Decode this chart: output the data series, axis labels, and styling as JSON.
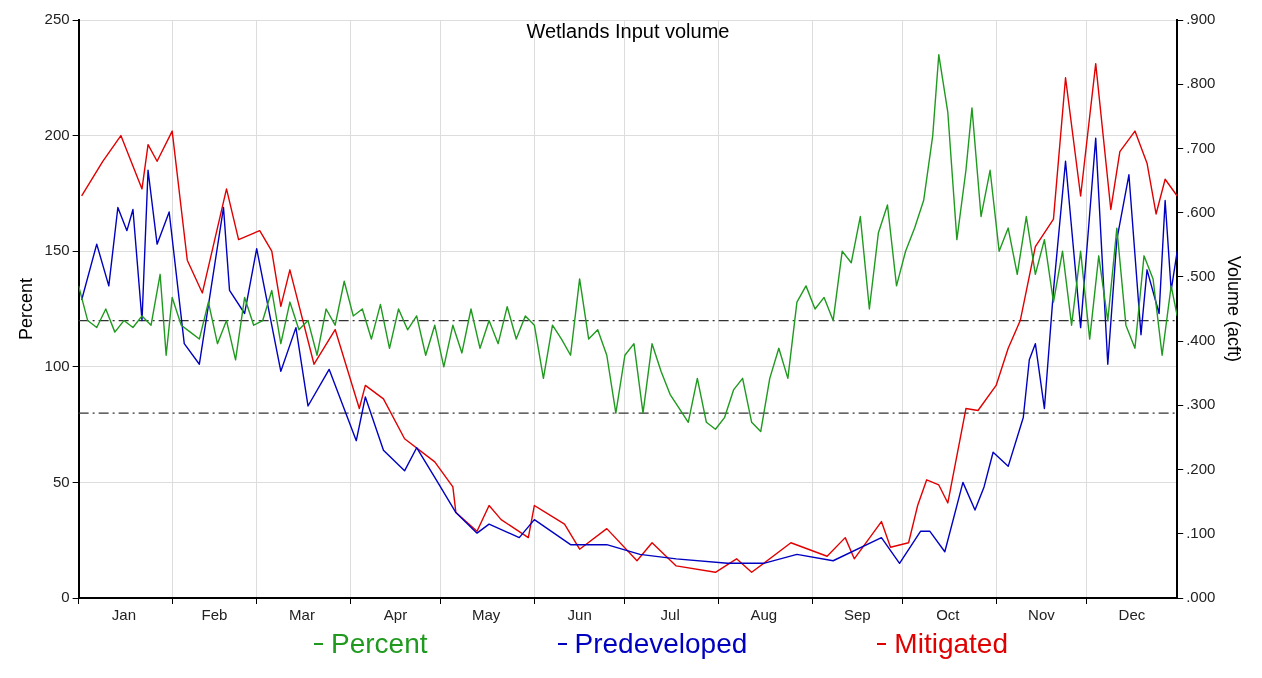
{
  "chart_data": {
    "type": "line",
    "title": "Wetlands Input volume",
    "ylabel": "Percent",
    "y2label": "Volume (acft)",
    "xlim": [
      "--01-01",
      "--12-31"
    ],
    "xticks": [
      {
        "value": "--01-01",
        "label": null
      },
      {
        "value": "--01-16",
        "label": "Jan"
      },
      {
        "value": "--02-01",
        "label": null
      },
      {
        "value": "--02-15",
        "label": "Feb"
      },
      {
        "value": "--03-01",
        "label": null
      },
      {
        "value": "--03-16",
        "label": "Mar"
      },
      {
        "value": "--04-01",
        "label": null
      },
      {
        "value": "--04-16",
        "label": "Apr"
      },
      {
        "value": "--05-01",
        "label": null
      },
      {
        "value": "--05-16",
        "label": "May"
      },
      {
        "value": "--06-01",
        "label": null
      },
      {
        "value": "--06-16",
        "label": "Jun"
      },
      {
        "value": "--07-01",
        "label": null
      },
      {
        "value": "--07-16",
        "label": "Jul"
      },
      {
        "value": "--08-01",
        "label": null
      },
      {
        "value": "--08-16",
        "label": "Aug"
      },
      {
        "value": "--09-01",
        "label": null
      },
      {
        "value": "--09-16",
        "label": "Sep"
      },
      {
        "value": "--10-01",
        "label": null
      },
      {
        "value": "--10-16",
        "label": "Oct"
      },
      {
        "value": "--11-01",
        "label": null
      },
      {
        "value": "--11-16",
        "label": "Nov"
      },
      {
        "value": "--12-01",
        "label": null
      },
      {
        "value": "--12-16",
        "label": "Dec"
      }
    ],
    "ylim": [
      0,
      250
    ],
    "yticks": [
      0,
      50,
      100,
      150,
      200,
      250
    ],
    "y2lim": [
      0,
      0.9
    ],
    "y2ticks": [
      {
        "value": 0,
        "label": ".000"
      },
      {
        "value": 0.1,
        "label": ".100"
      },
      {
        "value": 0.2,
        "label": ".200"
      },
      {
        "value": 0.3,
        "label": ".300"
      },
      {
        "value": 0.4,
        "label": ".400"
      },
      {
        "value": 0.5,
        "label": ".500"
      },
      {
        "value": 0.6,
        "label": ".600"
      },
      {
        "value": 0.7,
        "label": ".700"
      },
      {
        "value": 0.8,
        "label": ".800"
      },
      {
        "value": 0.9,
        "label": ".900"
      }
    ],
    "grid": true,
    "legend": "bottom",
    "ref_lines": [
      {
        "axis": "y",
        "value": 120,
        "line_style": "dashed",
        "color": "#333333"
      },
      {
        "axis": "y",
        "value": 80,
        "line_style": "dashed",
        "color": "#333333"
      }
    ],
    "series": [
      {
        "name": "Percent",
        "color": "#1f9a1f",
        "axis": "y",
        "x": [
          "--01-01",
          "--01-04",
          "--01-07",
          "--01-10",
          "--01-13",
          "--01-16",
          "--01-19",
          "--01-22",
          "--01-25",
          "--01-28",
          "--01-30",
          "--02-01",
          "--02-04",
          "--02-07",
          "--02-10",
          "--02-13",
          "--02-16",
          "--02-19",
          "--02-22",
          "--02-25",
          "--02-28",
          "--03-03",
          "--03-06",
          "--03-09",
          "--03-12",
          "--03-15",
          "--03-18",
          "--03-21",
          "--03-24",
          "--03-27",
          "--03-30",
          "--04-02",
          "--04-05",
          "--04-08",
          "--04-11",
          "--04-14",
          "--04-17",
          "--04-20",
          "--04-23",
          "--04-26",
          "--04-29",
          "--05-02",
          "--05-05",
          "--05-08",
          "--05-11",
          "--05-14",
          "--05-17",
          "--05-20",
          "--05-23",
          "--05-26",
          "--05-29",
          "--06-01",
          "--06-04",
          "--06-07",
          "--06-10",
          "--06-13",
          "--06-16",
          "--06-19",
          "--06-22",
          "--06-25",
          "--06-28",
          "--07-01",
          "--07-04",
          "--07-07",
          "--07-10",
          "--07-13",
          "--07-16",
          "--07-19",
          "--07-22",
          "--07-25",
          "--07-28",
          "--07-31",
          "--08-03",
          "--08-06",
          "--08-09",
          "--08-12",
          "--08-15",
          "--08-18",
          "--08-21",
          "--08-24",
          "--08-27",
          "--08-30",
          "--09-02",
          "--09-05",
          "--09-08",
          "--09-11",
          "--09-14",
          "--09-17",
          "--09-20",
          "--09-23",
          "--09-26",
          "--09-29",
          "--10-02",
          "--10-05",
          "--10-08",
          "--10-11",
          "--10-13",
          "--10-16",
          "--10-19",
          "--10-22",
          "--10-24",
          "--10-27",
          "--10-30",
          "--11-02",
          "--11-05",
          "--11-08",
          "--11-11",
          "--11-14",
          "--11-17",
          "--11-20",
          "--11-23",
          "--11-26",
          "--11-29",
          "--12-02",
          "--12-05",
          "--12-08",
          "--12-11",
          "--12-14",
          "--12-17",
          "--12-20",
          "--12-23",
          "--12-26",
          "--12-29",
          "--12-31"
        ],
        "values": [
          135,
          120,
          117,
          125,
          115,
          120,
          117,
          122,
          118,
          140,
          105,
          130,
          118,
          115,
          112,
          128,
          110,
          120,
          103,
          130,
          118,
          120,
          133,
          110,
          128,
          116,
          120,
          105,
          125,
          118,
          137,
          122,
          125,
          112,
          127,
          108,
          125,
          116,
          122,
          105,
          118,
          100,
          118,
          106,
          125,
          108,
          120,
          110,
          126,
          112,
          122,
          118,
          95,
          118,
          112,
          105,
          138,
          112,
          116,
          105,
          80,
          105,
          110,
          80,
          110,
          98,
          88,
          82,
          76,
          95,
          76,
          73,
          78,
          90,
          95,
          76,
          72,
          95,
          108,
          95,
          128,
          135,
          125,
          130,
          120,
          150,
          145,
          165,
          125,
          158,
          170,
          135,
          150,
          160,
          172,
          200,
          235,
          210,
          155,
          185,
          212,
          165,
          185,
          150,
          160,
          140,
          165,
          140,
          155,
          128,
          150,
          118,
          150,
          112,
          148,
          120,
          160,
          118,
          108,
          148,
          138,
          105,
          135,
          122
        ]
      },
      {
        "name": "Predeveloped",
        "color": "#0000c0",
        "axis": "y2",
        "x": [
          "--01-02",
          "--01-07",
          "--01-11",
          "--01-14",
          "--01-17",
          "--01-19",
          "--01-22",
          "--01-24",
          "--01-27",
          "--01-31",
          "--02-05",
          "--02-10",
          "--02-18",
          "--02-20",
          "--02-25",
          "--03-01",
          "--03-09",
          "--03-14",
          "--03-18",
          "--03-25",
          "--04-03",
          "--04-06",
          "--04-12",
          "--04-19",
          "--04-23",
          "--04-30",
          "--05-06",
          "--05-13",
          "--05-17",
          "--05-27",
          "--06-01",
          "--06-13",
          "--06-25",
          "--07-06",
          "--07-18",
          "--08-04",
          "--08-16",
          "--08-27",
          "--09-08",
          "--09-24",
          "--09-30",
          "--10-07",
          "--10-10",
          "--10-15",
          "--10-21",
          "--10-25",
          "--10-28",
          "--10-31",
          "--11-05",
          "--11-10",
          "--11-12",
          "--11-14",
          "--11-17",
          "--11-20",
          "--11-24",
          "--11-29",
          "--12-04",
          "--12-08",
          "--12-11",
          "--12-15",
          "--12-19",
          "--12-21",
          "--12-25",
          "--12-27",
          "--12-29",
          "--12-31"
        ],
        "values": [
          0.464,
          0.551,
          0.486,
          0.608,
          0.572,
          0.605,
          0.432,
          0.666,
          0.551,
          0.601,
          0.396,
          0.364,
          0.608,
          0.479,
          0.443,
          0.544,
          0.353,
          0.421,
          0.299,
          0.356,
          0.245,
          0.313,
          0.23,
          0.198,
          0.234,
          0.18,
          0.133,
          0.101,
          0.115,
          0.094,
          0.122,
          0.083,
          0.083,
          0.068,
          0.061,
          0.054,
          0.054,
          0.068,
          0.058,
          0.094,
          0.054,
          0.104,
          0.104,
          0.072,
          0.18,
          0.137,
          0.173,
          0.227,
          0.205,
          0.281,
          0.371,
          0.396,
          0.295,
          0.479,
          0.68,
          0.421,
          0.716,
          0.364,
          0.558,
          0.659,
          0.41,
          0.511,
          0.443,
          0.619,
          0.479,
          0.54
        ]
      },
      {
        "name": "Mitigated",
        "color": "#e00000",
        "axis": "y2",
        "x": [
          "--01-02",
          "--01-09",
          "--01-15",
          "--01-22",
          "--01-24",
          "--01-27",
          "--02-01",
          "--02-06",
          "--02-11",
          "--02-19",
          "--02-23",
          "--03-02",
          "--03-06",
          "--03-09",
          "--03-12",
          "--03-20",
          "--03-27",
          "--04-04",
          "--04-06",
          "--04-12",
          "--04-19",
          "--04-29",
          "--05-05",
          "--05-06",
          "--05-13",
          "--05-17",
          "--05-21",
          "--05-30",
          "--06-01",
          "--06-11",
          "--06-16",
          "--06-25",
          "--07-05",
          "--07-10",
          "--07-18",
          "--07-31",
          "--08-07",
          "--08-12",
          "--08-25",
          "--09-06",
          "--09-12",
          "--09-15",
          "--09-24",
          "--09-27",
          "--10-03",
          "--10-06",
          "--10-09",
          "--10-13",
          "--10-16",
          "--10-22",
          "--10-26",
          "--11-01",
          "--11-05",
          "--11-09",
          "--11-14",
          "--11-20",
          "--11-24",
          "--11-29",
          "--12-04",
          "--12-09",
          "--12-12",
          "--12-17",
          "--12-21",
          "--12-24",
          "--12-27",
          "--12-31"
        ],
        "values": [
          0.626,
          0.68,
          0.72,
          0.637,
          0.706,
          0.68,
          0.727,
          0.526,
          0.475,
          0.637,
          0.558,
          0.572,
          0.54,
          0.454,
          0.511,
          0.364,
          0.418,
          0.295,
          0.331,
          0.31,
          0.248,
          0.212,
          0.173,
          0.133,
          0.104,
          0.144,
          0.122,
          0.094,
          0.144,
          0.115,
          0.076,
          0.108,
          0.058,
          0.086,
          0.05,
          0.04,
          0.061,
          0.04,
          0.086,
          0.065,
          0.094,
          0.061,
          0.119,
          0.079,
          0.086,
          0.144,
          0.184,
          0.176,
          0.148,
          0.295,
          0.292,
          0.331,
          0.389,
          0.432,
          0.547,
          0.59,
          0.81,
          0.626,
          0.832,
          0.605,
          0.695,
          0.727,
          0.677,
          0.598,
          0.652,
          0.626
        ]
      }
    ]
  }
}
